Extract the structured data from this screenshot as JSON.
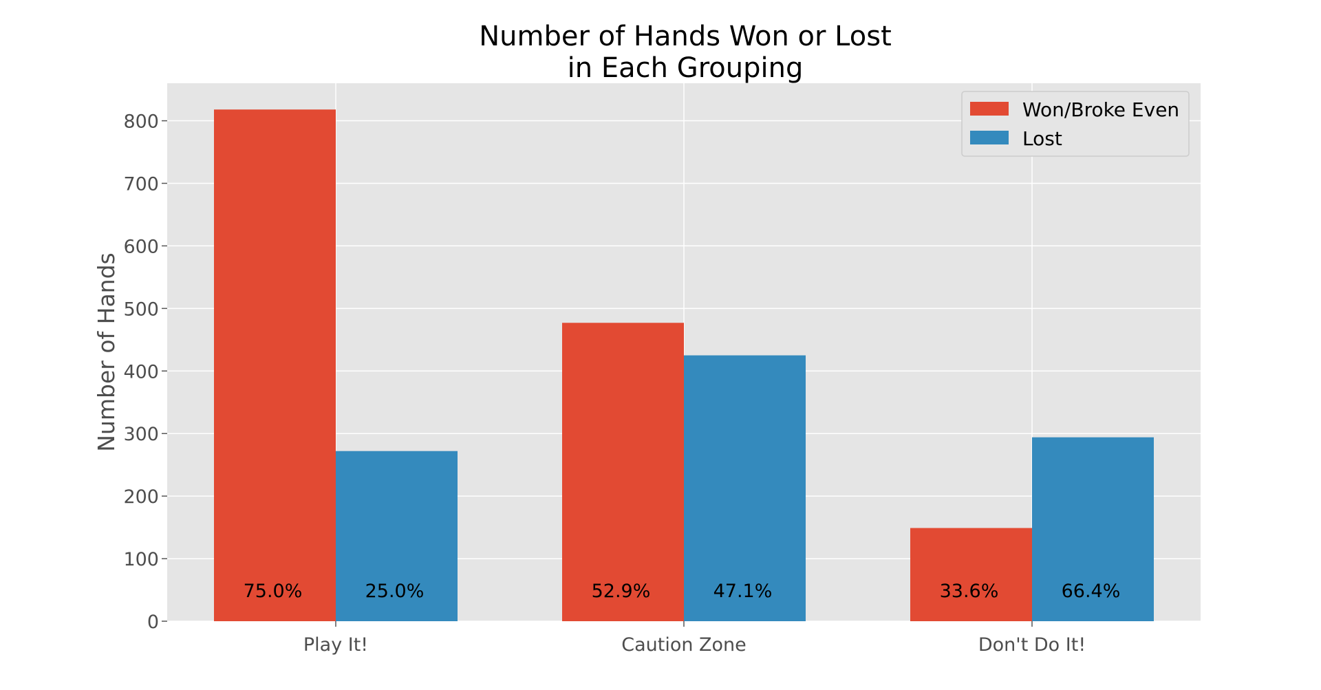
{
  "chart_data": {
    "type": "bar",
    "title": [
      "Number of Hands Won or Lost",
      "in Each Grouping"
    ],
    "xlabel": "",
    "ylabel": "Number of Hands",
    "categories": [
      "Play It!",
      "Caution Zone",
      "Don't Do It!"
    ],
    "series": [
      {
        "name": "Won/Broke Even",
        "values": [
          818,
          477,
          149
        ],
        "labels": [
          "75.0%",
          "52.9%",
          "33.6%"
        ],
        "color": "#E24A33"
      },
      {
        "name": "Lost",
        "values": [
          272,
          425,
          294
        ],
        "labels": [
          "25.0%",
          "47.1%",
          "66.4%"
        ],
        "color": "#348ABD"
      }
    ],
    "ylim": [
      0,
      860
    ],
    "yticks": [
      0,
      100,
      200,
      300,
      400,
      500,
      600,
      700,
      800
    ],
    "grid": true,
    "legend_position": "top-right",
    "background": "#E5E5E5"
  }
}
